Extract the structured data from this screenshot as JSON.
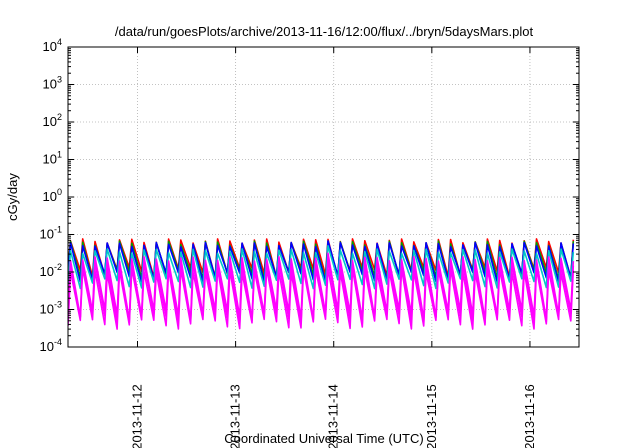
{
  "chart_data": {
    "type": "line",
    "title": "/data/run/goesPlots/archive/2013-11-16/12:00/flux/../bryn/5daysMars.plot",
    "xlabel": "Coordinated Universal Time (UTC)",
    "ylabel": "cGy/day",
    "yscale": "log",
    "ylim": [
      0.0001,
      10000
    ],
    "y_ticks": [
      {
        "value": 0.0001,
        "base": "10",
        "exp": "-4"
      },
      {
        "value": 0.001,
        "base": "10",
        "exp": "-3"
      },
      {
        "value": 0.01,
        "base": "10",
        "exp": "-2"
      },
      {
        "value": 0.1,
        "base": "10",
        "exp": "-1"
      },
      {
        "value": 1,
        "base": "10",
        "exp": "0"
      },
      {
        "value": 10,
        "base": "10",
        "exp": "1"
      },
      {
        "value": 100,
        "base": "10",
        "exp": "2"
      },
      {
        "value": 1000,
        "base": "10",
        "exp": "3"
      },
      {
        "value": 10000,
        "base": "10",
        "exp": "4"
      }
    ],
    "xlim": [
      "2013-11-11T07:00",
      "2013-11-16T12:00"
    ],
    "x_ticks": [
      {
        "value": "2013-11-12T00:00",
        "label": "2013-11-12"
      },
      {
        "value": "2013-11-13T00:00",
        "label": "2013-11-13"
      },
      {
        "value": "2013-11-14T00:00",
        "label": "2013-11-14"
      },
      {
        "value": "2013-11-15T00:00",
        "label": "2013-11-15"
      },
      {
        "value": "2013-11-16T00:00",
        "label": "2013-11-16"
      }
    ],
    "grid": true,
    "sawtooth_period_hours": 3,
    "series": [
      {
        "color": "#ff0000",
        "peak": 0.075,
        "trough": 0.012
      },
      {
        "color": "#00a000",
        "peak": 0.065,
        "trough": 0.01
      },
      {
        "color": "#0000ff",
        "peak": 0.06,
        "trough": 0.009
      },
      {
        "color": "#00c8c8",
        "peak": 0.04,
        "trough": 0.006
      },
      {
        "color": "#ff00ff",
        "peak": 0.025,
        "trough": 0.0009
      },
      {
        "color": "#ff00ff",
        "peak": 0.018,
        "trough": 0.0007
      },
      {
        "color": "#ff00ff",
        "peak": 0.012,
        "trough": 0.0005
      }
    ]
  }
}
